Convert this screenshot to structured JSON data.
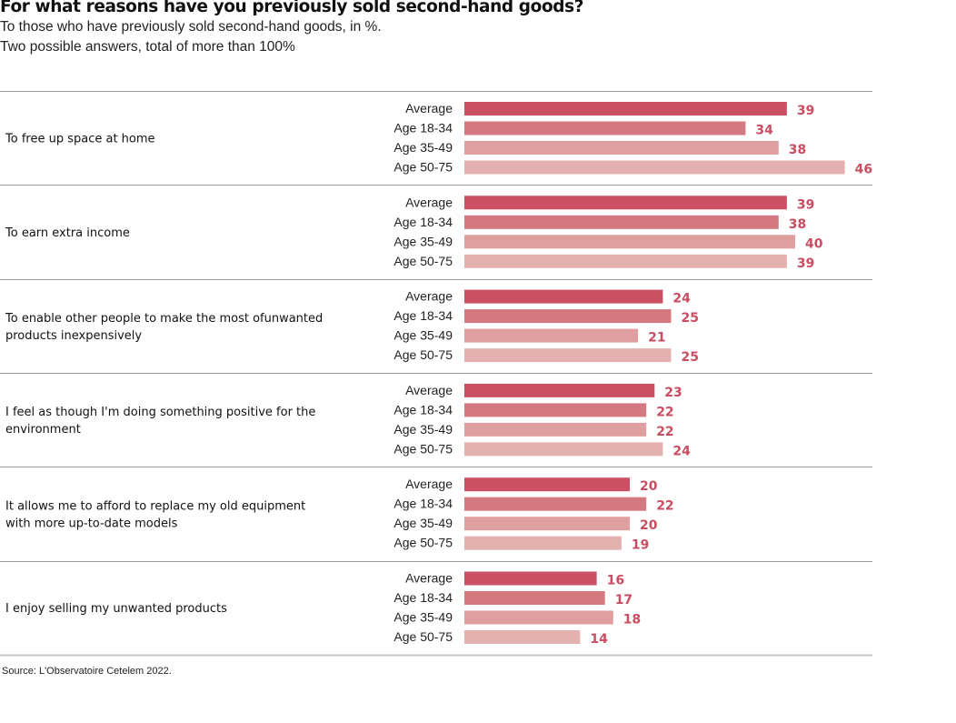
{
  "title": "For what reasons have you previously sold second-hand goods?",
  "subtitle_lines": [
    "To those who have previously sold second-hand goods, in %.",
    "Two possible answers, total of more than 100%"
  ],
  "source": "Source: L'Observatoire Cetelem 2022.",
  "colors": {
    "Average": "#cc5064",
    "Age 18-34": "#d57980",
    "Age 35-49": "#df9e9f",
    "Age 50-75": "#e4b1b1",
    "value_label": "#c94d61",
    "rule": "#9a9a9a"
  },
  "chart_data": {
    "type": "bar",
    "orientation": "horizontal",
    "title": "For what reasons have you previously sold second-hand goods?",
    "subtitle": "To those who have previously sold second-hand goods, in %. Two possible answers, total of more than 100%",
    "unit": "%",
    "xlim": [
      0,
      46
    ],
    "grid": false,
    "legend": "none (group labels beside each bar)",
    "groups": [
      "Average",
      "Age 18-34",
      "Age 35-49",
      "Age 50-75"
    ],
    "categories": [
      {
        "label_lines": [
          "To free up space at home"
        ],
        "values": [
          39,
          34,
          38,
          46
        ]
      },
      {
        "label_lines": [
          "To earn extra income"
        ],
        "values": [
          39,
          38,
          40,
          39
        ]
      },
      {
        "label_lines": [
          "To enable other people to make the most ofunwanted",
          "products inexpensively"
        ],
        "values": [
          24,
          25,
          21,
          25
        ]
      },
      {
        "label_lines": [
          "I feel as though I'm doing something positive for the",
          "environment"
        ],
        "values": [
          23,
          22,
          22,
          24
        ]
      },
      {
        "label_lines": [
          "It allows me to afford to replace my old equipment",
          "with more up-to-date models"
        ],
        "values": [
          20,
          22,
          20,
          19
        ]
      },
      {
        "label_lines": [
          "I enjoy selling my unwanted products"
        ],
        "values": [
          16,
          17,
          18,
          14
        ]
      }
    ]
  }
}
